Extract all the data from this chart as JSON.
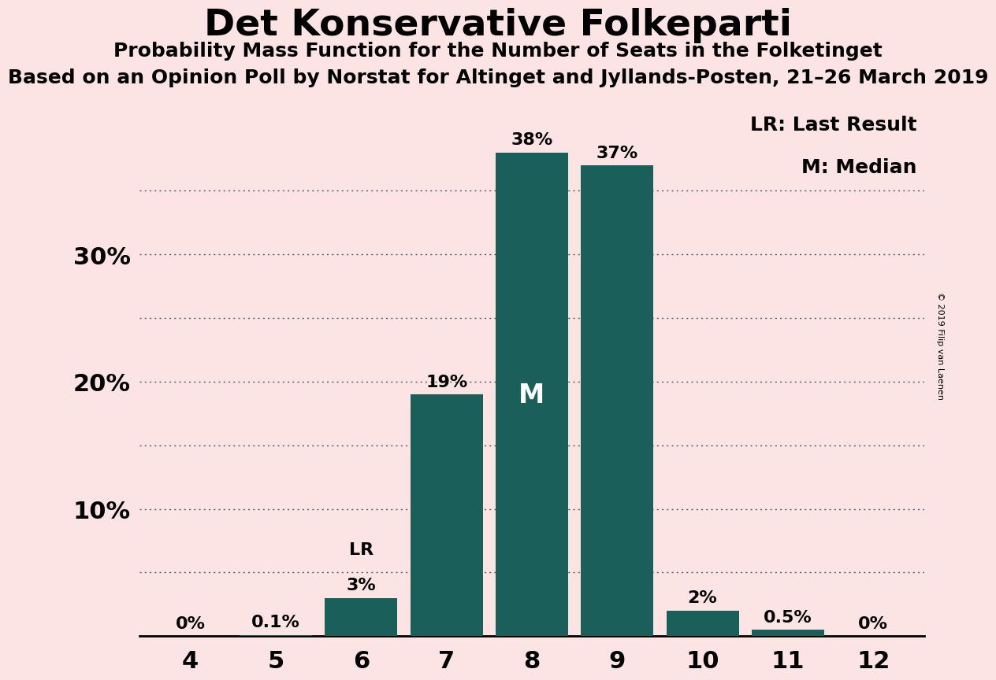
{
  "title": "Det Konservative Folkeparti",
  "subtitle1": "Probability Mass Function for the Number of Seats in the Folketinget",
  "subtitle2": "Based on an Opinion Poll by Norstat for Altinget and Jyllands-Posten, 21–26 March 2019",
  "copyright": "© 2019 Filip van Laenen",
  "categories": [
    4,
    5,
    6,
    7,
    8,
    9,
    10,
    11,
    12
  ],
  "values": [
    0.0,
    0.1,
    3.0,
    19.0,
    38.0,
    37.0,
    2.0,
    0.5,
    0.0
  ],
  "bar_color": "#1a5f5a",
  "background_color": "#fce4e4",
  "label_texts": [
    "0%",
    "0.1%",
    "3%",
    "19%",
    "38%",
    "37%",
    "2%",
    "0.5%",
    "0%"
  ],
  "ylim": [
    0,
    42
  ],
  "lr_bar_index": 2,
  "lr_label": "LR",
  "median_bar_index": 4,
  "median_label": "M",
  "legend_lr": "LR: Last Result",
  "legend_m": "M: Median",
  "grid_color": "#555555",
  "dotted_yticks": [
    5,
    10,
    15,
    20,
    25,
    30,
    35
  ],
  "labeled_yticks": [
    10,
    20,
    30
  ],
  "ytick_labels": [
    "10%",
    "20%",
    "30%"
  ]
}
